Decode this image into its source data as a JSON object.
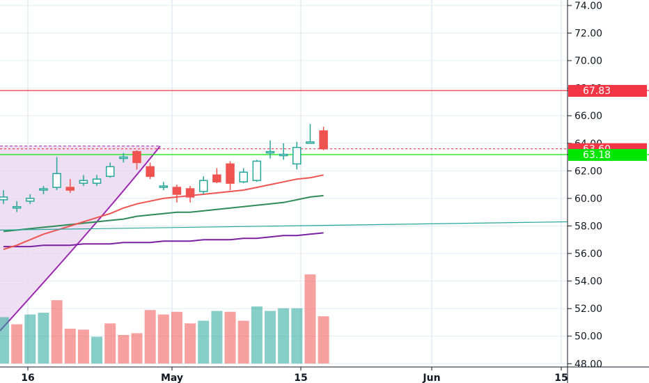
{
  "colors": {
    "up": "#26a69a",
    "down": "#ef5350",
    "grid": "#e1ecf2",
    "axis_text": "#131722",
    "resistance": "#f23645",
    "support": "#00e600",
    "ma_fast": "#ef5350",
    "ma_mid": "#2e8b57",
    "ma_slow": "#7b1fa2",
    "trend": "#26a69a",
    "zone_fill": "#e8d5ee",
    "zone_edge": "#9c27b0"
  },
  "chart_data": {
    "type": "candlestick",
    "ylim": [
      46.6,
      74.4
    ],
    "y_ticks": [
      "48.00",
      "50.00",
      "52.00",
      "54.00",
      "56.00",
      "58.00",
      "60.00",
      "62.00",
      "64.00",
      "66.00",
      "68.00",
      "70.00",
      "72.00",
      "74.00"
    ],
    "x_ticks": [
      "16",
      "May",
      "15",
      "Jun",
      "15"
    ],
    "candles": [
      {
        "o": 59.9,
        "h": 60.6,
        "l": 59.6,
        "c": 60.1
      },
      {
        "o": 59.4,
        "h": 59.8,
        "l": 59.0,
        "c": 59.4
      },
      {
        "o": 59.8,
        "h": 60.3,
        "l": 59.6,
        "c": 60.0
      },
      {
        "o": 60.6,
        "h": 60.9,
        "l": 60.3,
        "c": 60.7
      },
      {
        "o": 60.8,
        "h": 63.0,
        "l": 60.6,
        "c": 61.8
      },
      {
        "o": 60.8,
        "h": 61.4,
        "l": 60.4,
        "c": 60.6
      },
      {
        "o": 61.1,
        "h": 61.7,
        "l": 60.9,
        "c": 61.3
      },
      {
        "o": 61.1,
        "h": 61.7,
        "l": 60.9,
        "c": 61.4
      },
      {
        "o": 61.6,
        "h": 62.6,
        "l": 61.5,
        "c": 62.3
      },
      {
        "o": 62.9,
        "h": 63.3,
        "l": 62.6,
        "c": 63.0
      },
      {
        "o": 63.4,
        "h": 63.5,
        "l": 62.1,
        "c": 62.6
      },
      {
        "o": 62.3,
        "h": 62.6,
        "l": 61.4,
        "c": 61.6
      },
      {
        "o": 60.9,
        "h": 61.2,
        "l": 60.6,
        "c": 60.9
      },
      {
        "o": 60.8,
        "h": 61.0,
        "l": 59.7,
        "c": 60.3
      },
      {
        "o": 60.7,
        "h": 60.9,
        "l": 59.7,
        "c": 60.1
      },
      {
        "o": 60.5,
        "h": 61.6,
        "l": 60.3,
        "c": 61.3
      },
      {
        "o": 61.7,
        "h": 62.2,
        "l": 61.1,
        "c": 61.2
      },
      {
        "o": 62.5,
        "h": 62.7,
        "l": 60.6,
        "c": 61.1
      },
      {
        "o": 61.2,
        "h": 62.2,
        "l": 61.1,
        "c": 61.9
      },
      {
        "o": 61.3,
        "h": 62.8,
        "l": 61.2,
        "c": 62.7
      },
      {
        "o": 63.3,
        "h": 64.2,
        "l": 62.9,
        "c": 63.4
      },
      {
        "o": 63.2,
        "h": 64.0,
        "l": 62.8,
        "c": 63.2
      },
      {
        "o": 62.5,
        "h": 64.1,
        "l": 62.1,
        "c": 63.7
      },
      {
        "o": 64.1,
        "h": 65.4,
        "l": 64.0,
        "c": 64.1
      },
      {
        "o": 64.9,
        "h": 65.2,
        "l": 63.5,
        "c": 63.6
      }
    ],
    "volume_state": [
      "up",
      "down",
      "up",
      "up",
      "down",
      "down",
      "down",
      "up",
      "down",
      "down",
      "down",
      "down",
      "down",
      "down",
      "down",
      "up",
      "up",
      "down",
      "down",
      "up",
      "up",
      "up",
      "up",
      "down",
      "down"
    ],
    "volume": [
      0.52,
      0.44,
      0.55,
      0.57,
      0.71,
      0.39,
      0.38,
      0.3,
      0.45,
      0.32,
      0.34,
      0.6,
      0.55,
      0.58,
      0.45,
      0.48,
      0.59,
      0.58,
      0.48,
      0.64,
      0.59,
      0.62,
      0.62,
      1.0,
      0.53
    ],
    "ma_fast": [
      56.3,
      56.6,
      57.0,
      57.4,
      57.7,
      58.0,
      58.3,
      58.6,
      58.9,
      59.3,
      59.6,
      59.8,
      60.0,
      60.1,
      60.2,
      60.3,
      60.4,
      60.5,
      60.6,
      60.8,
      61.0,
      61.2,
      61.4,
      61.5,
      61.7
    ],
    "ma_mid": [
      57.6,
      57.7,
      57.8,
      57.9,
      58.0,
      58.1,
      58.2,
      58.3,
      58.4,
      58.5,
      58.7,
      58.8,
      58.9,
      59.0,
      59.0,
      59.1,
      59.2,
      59.3,
      59.4,
      59.5,
      59.6,
      59.7,
      59.9,
      60.1,
      60.2
    ],
    "ma_slow": [
      56.5,
      56.5,
      56.5,
      56.6,
      56.6,
      56.6,
      56.7,
      56.7,
      56.7,
      56.8,
      56.8,
      56.8,
      56.9,
      56.9,
      56.9,
      57.0,
      57.0,
      57.0,
      57.1,
      57.1,
      57.2,
      57.3,
      57.3,
      57.4,
      57.5
    ],
    "trend_line": {
      "from": 57.7,
      "to": 58.3
    },
    "levels": [
      {
        "name": "resistance",
        "value": 67.83,
        "label": "67.83"
      },
      {
        "name": "last-price",
        "value": 63.6,
        "label": "63.60"
      },
      {
        "name": "support",
        "value": 63.18,
        "label": "63.18"
      }
    ],
    "zone_top": 63.8
  }
}
